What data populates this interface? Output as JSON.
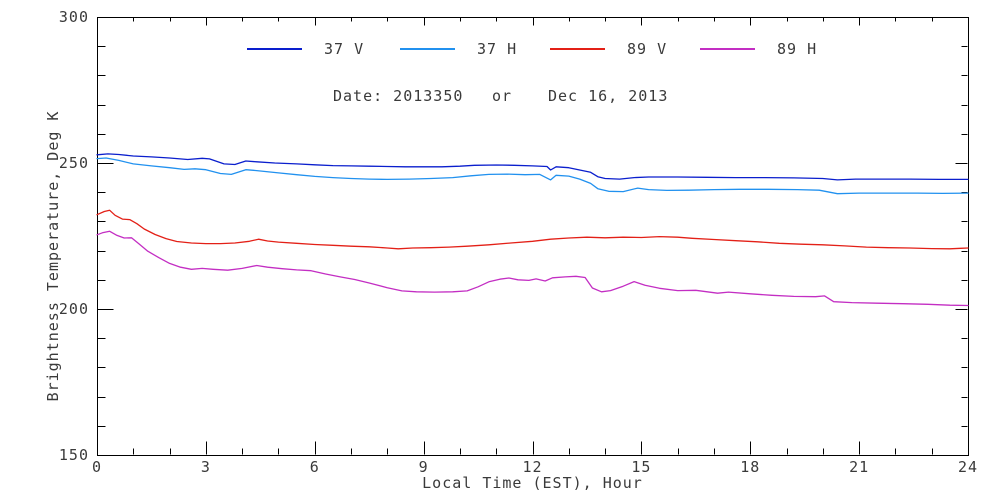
{
  "chart_data": {
    "type": "line",
    "title": "Date: 2013350  or  Dec 16, 2013",
    "title_parts": [
      "Date: 2013350",
      "or",
      "Dec 16, 2013"
    ],
    "xlabel": "Local Time (EST), Hour",
    "ylabel": "Brightness Temperature, Deg K",
    "xlim": [
      0,
      24
    ],
    "ylim": [
      150,
      300
    ],
    "x_major_ticks": [
      0,
      3,
      6,
      9,
      12,
      15,
      18,
      21,
      24
    ],
    "x_minor_step": 1,
    "y_major_ticks": [
      150,
      200,
      250,
      300
    ],
    "y_minor_step": 10,
    "grid": false,
    "legend_position": "top-inside",
    "axis_color": "#000000",
    "text_color": "#3a3a3a",
    "series": [
      {
        "name": "37 V",
        "color": "#0a1ecd",
        "points": [
          [
            0,
            252.8
          ],
          [
            0.3,
            253.1
          ],
          [
            0.6,
            252.9
          ],
          [
            1,
            252.4
          ],
          [
            1.5,
            252.1
          ],
          [
            2,
            251.7
          ],
          [
            2.5,
            251.2
          ],
          [
            2.9,
            251.6
          ],
          [
            3.1,
            251.4
          ],
          [
            3.5,
            249.7
          ],
          [
            3.8,
            249.5
          ],
          [
            4.1,
            250.7
          ],
          [
            4.4,
            250.4
          ],
          [
            4.9,
            250.0
          ],
          [
            5.5,
            249.7
          ],
          [
            6,
            249.4
          ],
          [
            6.5,
            249.1
          ],
          [
            7,
            249.0
          ],
          [
            7.5,
            248.9
          ],
          [
            8,
            248.8
          ],
          [
            8.5,
            248.7
          ],
          [
            9,
            248.7
          ],
          [
            9.5,
            248.7
          ],
          [
            10,
            248.9
          ],
          [
            10.4,
            249.2
          ],
          [
            11,
            249.3
          ],
          [
            11.5,
            249.2
          ],
          [
            12,
            249.0
          ],
          [
            12.4,
            248.8
          ],
          [
            12.5,
            247.6
          ],
          [
            12.65,
            248.7
          ],
          [
            13,
            248.4
          ],
          [
            13.3,
            247.6
          ],
          [
            13.6,
            246.8
          ],
          [
            13.8,
            245.3
          ],
          [
            14,
            244.7
          ],
          [
            14.4,
            244.5
          ],
          [
            14.8,
            245.0
          ],
          [
            15.2,
            245.2
          ],
          [
            16,
            245.2
          ],
          [
            16.8,
            245.1
          ],
          [
            17.6,
            245.0
          ],
          [
            18.4,
            245.0
          ],
          [
            19.2,
            244.9
          ],
          [
            20,
            244.7
          ],
          [
            20.4,
            244.2
          ],
          [
            20.9,
            244.5
          ],
          [
            21.6,
            244.5
          ],
          [
            22.4,
            244.5
          ],
          [
            23.2,
            244.4
          ],
          [
            24,
            244.4
          ]
        ]
      },
      {
        "name": "37 H",
        "color": "#2191ef",
        "points": [
          [
            0,
            251.5
          ],
          [
            0.25,
            251.7
          ],
          [
            0.6,
            250.9
          ],
          [
            1,
            249.7
          ],
          [
            1.5,
            249.0
          ],
          [
            2,
            248.4
          ],
          [
            2.4,
            247.8
          ],
          [
            2.7,
            248.0
          ],
          [
            3,
            247.7
          ],
          [
            3.4,
            246.4
          ],
          [
            3.7,
            246.1
          ],
          [
            4.1,
            247.7
          ],
          [
            4.4,
            247.4
          ],
          [
            5,
            246.6
          ],
          [
            5.5,
            246.0
          ],
          [
            6,
            245.4
          ],
          [
            6.5,
            245.0
          ],
          [
            7,
            244.7
          ],
          [
            7.5,
            244.5
          ],
          [
            8,
            244.4
          ],
          [
            8.6,
            244.5
          ],
          [
            9.2,
            244.7
          ],
          [
            9.8,
            245.0
          ],
          [
            10.3,
            245.6
          ],
          [
            10.8,
            246.1
          ],
          [
            11.3,
            246.2
          ],
          [
            11.8,
            246.0
          ],
          [
            12.2,
            246.1
          ],
          [
            12.5,
            244.2
          ],
          [
            12.65,
            245.8
          ],
          [
            13,
            245.5
          ],
          [
            13.3,
            244.5
          ],
          [
            13.6,
            243.0
          ],
          [
            13.8,
            241.2
          ],
          [
            14.1,
            240.3
          ],
          [
            14.5,
            240.2
          ],
          [
            14.9,
            241.4
          ],
          [
            15.2,
            240.9
          ],
          [
            15.7,
            240.6
          ],
          [
            16.3,
            240.7
          ],
          [
            17,
            240.9
          ],
          [
            17.7,
            241.0
          ],
          [
            18.5,
            241.0
          ],
          [
            19.3,
            240.9
          ],
          [
            19.9,
            240.7
          ],
          [
            20.4,
            239.5
          ],
          [
            21,
            239.7
          ],
          [
            21.8,
            239.7
          ],
          [
            22.6,
            239.7
          ],
          [
            23.3,
            239.6
          ],
          [
            24,
            239.7
          ]
        ]
      },
      {
        "name": "89 V",
        "color": "#e32017",
        "points": [
          [
            0,
            232.3
          ],
          [
            0.2,
            233.4
          ],
          [
            0.35,
            233.8
          ],
          [
            0.5,
            232.1
          ],
          [
            0.7,
            230.8
          ],
          [
            0.9,
            230.6
          ],
          [
            1.1,
            229.2
          ],
          [
            1.3,
            227.4
          ],
          [
            1.6,
            225.5
          ],
          [
            1.9,
            224.1
          ],
          [
            2.2,
            223.1
          ],
          [
            2.6,
            222.6
          ],
          [
            3,
            222.4
          ],
          [
            3.4,
            222.4
          ],
          [
            3.8,
            222.6
          ],
          [
            4.2,
            223.2
          ],
          [
            4.45,
            223.9
          ],
          [
            4.7,
            223.3
          ],
          [
            5,
            222.9
          ],
          [
            5.5,
            222.5
          ],
          [
            6,
            222.1
          ],
          [
            6.5,
            221.8
          ],
          [
            7,
            221.5
          ],
          [
            7.5,
            221.3
          ],
          [
            8,
            220.9
          ],
          [
            8.3,
            220.6
          ],
          [
            8.7,
            220.9
          ],
          [
            9.2,
            221.0
          ],
          [
            9.7,
            221.2
          ],
          [
            10.2,
            221.5
          ],
          [
            10.8,
            222.0
          ],
          [
            11.4,
            222.6
          ],
          [
            12,
            223.2
          ],
          [
            12.5,
            223.9
          ],
          [
            13,
            224.3
          ],
          [
            13.5,
            224.6
          ],
          [
            14,
            224.4
          ],
          [
            14.5,
            224.6
          ],
          [
            15,
            224.5
          ],
          [
            15.5,
            224.8
          ],
          [
            16,
            224.6
          ],
          [
            16.4,
            224.2
          ],
          [
            17,
            223.8
          ],
          [
            17.6,
            223.4
          ],
          [
            18.2,
            223.0
          ],
          [
            18.8,
            222.5
          ],
          [
            19.4,
            222.2
          ],
          [
            20,
            222.0
          ],
          [
            20.6,
            221.6
          ],
          [
            21.2,
            221.2
          ],
          [
            21.8,
            221.0
          ],
          [
            22.4,
            220.9
          ],
          [
            23,
            220.7
          ],
          [
            23.5,
            220.6
          ],
          [
            23.8,
            220.8
          ],
          [
            24,
            220.9
          ]
        ]
      },
      {
        "name": "89 H",
        "color": "#c32ec3",
        "points": [
          [
            0,
            225.4
          ],
          [
            0.15,
            226.1
          ],
          [
            0.35,
            226.6
          ],
          [
            0.55,
            225.2
          ],
          [
            0.75,
            224.3
          ],
          [
            0.95,
            224.4
          ],
          [
            1.15,
            222.4
          ],
          [
            1.4,
            219.8
          ],
          [
            1.7,
            217.6
          ],
          [
            2,
            215.6
          ],
          [
            2.3,
            214.3
          ],
          [
            2.6,
            213.6
          ],
          [
            2.9,
            213.9
          ],
          [
            3.2,
            213.6
          ],
          [
            3.6,
            213.3
          ],
          [
            4,
            213.9
          ],
          [
            4.4,
            214.9
          ],
          [
            4.7,
            214.3
          ],
          [
            5.1,
            213.8
          ],
          [
            5.5,
            213.4
          ],
          [
            5.9,
            213.1
          ],
          [
            6.3,
            212.0
          ],
          [
            6.7,
            211.0
          ],
          [
            7.1,
            210.1
          ],
          [
            7.5,
            208.9
          ],
          [
            8,
            207.3
          ],
          [
            8.4,
            206.2
          ],
          [
            8.8,
            205.9
          ],
          [
            9.3,
            205.8
          ],
          [
            9.8,
            205.9
          ],
          [
            10.2,
            206.2
          ],
          [
            10.5,
            207.6
          ],
          [
            10.8,
            209.3
          ],
          [
            11.1,
            210.2
          ],
          [
            11.35,
            210.6
          ],
          [
            11.6,
            210.0
          ],
          [
            11.9,
            209.8
          ],
          [
            12.1,
            210.3
          ],
          [
            12.35,
            209.6
          ],
          [
            12.55,
            210.7
          ],
          [
            12.9,
            211.0
          ],
          [
            13.2,
            211.2
          ],
          [
            13.45,
            210.8
          ],
          [
            13.65,
            207.2
          ],
          [
            13.9,
            205.9
          ],
          [
            14.15,
            206.3
          ],
          [
            14.5,
            207.8
          ],
          [
            14.8,
            209.4
          ],
          [
            15.1,
            208.1
          ],
          [
            15.5,
            207.1
          ],
          [
            16,
            206.3
          ],
          [
            16.5,
            206.4
          ],
          [
            17.1,
            205.4
          ],
          [
            17.4,
            205.8
          ],
          [
            18,
            205.2
          ],
          [
            18.6,
            204.7
          ],
          [
            19.2,
            204.3
          ],
          [
            19.8,
            204.2
          ],
          [
            20.05,
            204.5
          ],
          [
            20.3,
            202.5
          ],
          [
            20.8,
            202.2
          ],
          [
            21.5,
            202.0
          ],
          [
            22.2,
            201.8
          ],
          [
            22.9,
            201.6
          ],
          [
            23.5,
            201.3
          ],
          [
            24,
            201.2
          ]
        ]
      }
    ]
  }
}
